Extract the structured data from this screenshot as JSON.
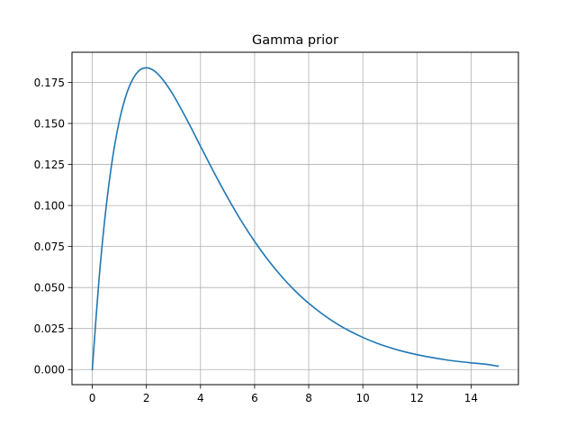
{
  "chart_data": {
    "type": "line",
    "title": "Gamma prior",
    "xlabel": "",
    "ylabel": "",
    "xlim": [
      -0.75,
      15.75
    ],
    "ylim": [
      -0.0092,
      0.1934
    ],
    "xticks": [
      0,
      2,
      4,
      6,
      8,
      10,
      12,
      14
    ],
    "xtick_labels": [
      "0",
      "2",
      "4",
      "6",
      "8",
      "10",
      "12",
      "14"
    ],
    "yticks": [
      0.0,
      0.025,
      0.05,
      0.075,
      0.1,
      0.125,
      0.15,
      0.175
    ],
    "ytick_labels": [
      "0.000",
      "0.025",
      "0.050",
      "0.075",
      "0.100",
      "0.125",
      "0.150",
      "0.175"
    ],
    "grid": true,
    "legend": "none",
    "series": [
      {
        "color": "#1f77b4",
        "x": [
          0,
          0.25,
          0.5,
          0.75,
          1,
          1.25,
          1.5,
          1.75,
          2,
          2.25,
          2.5,
          2.75,
          3,
          3.5,
          4,
          4.5,
          5,
          5.5,
          6,
          6.5,
          7,
          7.5,
          8,
          8.5,
          9,
          9.5,
          10,
          10.5,
          11,
          11.5,
          12,
          12.5,
          13,
          13.5,
          14,
          14.5,
          15
        ],
        "y": [
          0.0,
          0.0552,
          0.0974,
          0.1289,
          0.1516,
          0.1672,
          0.1771,
          0.1825,
          0.1839,
          0.1825,
          0.1788,
          0.1735,
          0.1672,
          0.1522,
          0.1361,
          0.1201,
          0.1049,
          0.0908,
          0.0781,
          0.0667,
          0.0567,
          0.0479,
          0.0404,
          0.0339,
          0.0283,
          0.0236,
          0.0196,
          0.0162,
          0.0134,
          0.011,
          0.0091,
          0.0075,
          0.0061,
          0.005,
          0.0041,
          0.0033,
          0.0021
        ]
      }
    ]
  }
}
